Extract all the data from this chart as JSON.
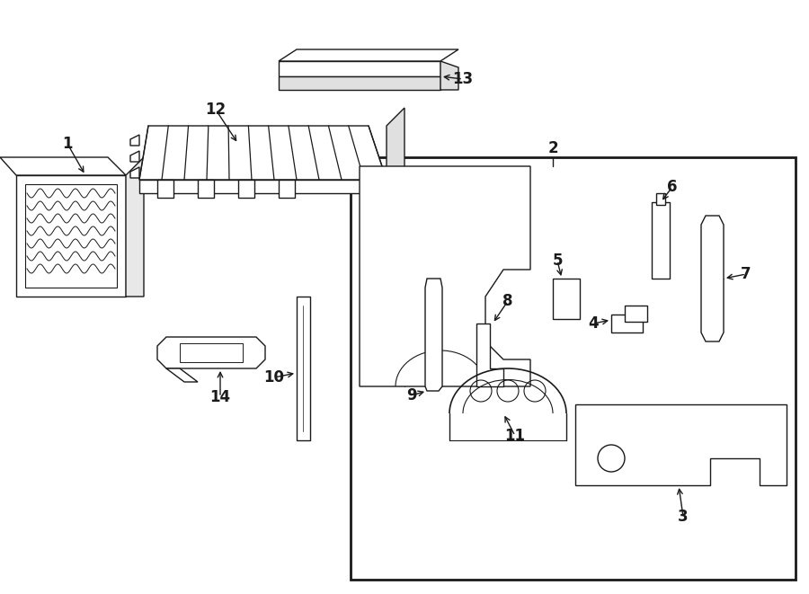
{
  "bg_color": "#ffffff",
  "line_color": "#1a1a1a",
  "figsize": [
    9.0,
    6.61
  ],
  "dpi": 100,
  "xlim": [
    0,
    900
  ],
  "ylim": [
    0,
    661
  ]
}
